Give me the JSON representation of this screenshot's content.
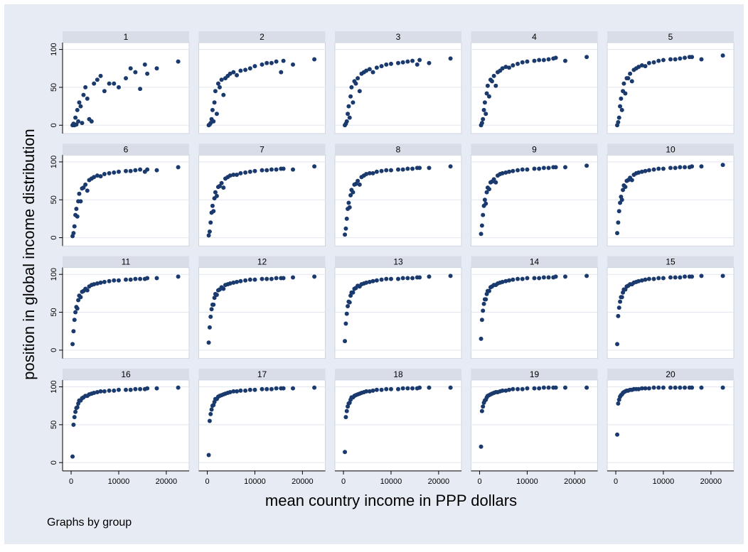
{
  "chart_data": {
    "type": "scatter",
    "x_label": "mean country income in PPP dollars",
    "y_label": "position in global income distribution",
    "note": "Graphs by group",
    "color": "#1a3a6e",
    "grid": true,
    "xlim": [
      -1800,
      24800
    ],
    "ylim": [
      -11,
      109
    ],
    "xticks": [
      0,
      10000,
      20000
    ],
    "yticks": [
      0,
      50,
      100
    ],
    "x": [
      300,
      500,
      700,
      900,
      1100,
      1300,
      1500,
      1700,
      2000,
      2300,
      2600,
      3000,
      3400,
      3800,
      4300,
      4800,
      5500,
      6200,
      7000,
      8000,
      9000,
      10000,
      11500,
      12500,
      13500,
      14500,
      15500,
      16000,
      18000,
      22500
    ],
    "series": [
      {
        "name": "1",
        "values": [
          0,
          2,
          0,
          10,
          1,
          20,
          5,
          30,
          25,
          3,
          40,
          50,
          35,
          8,
          5,
          55,
          60,
          65,
          45,
          55,
          55,
          50,
          62,
          75,
          70,
          48,
          80,
          68,
          75,
          84
        ]
      },
      {
        "name": "2",
        "values": [
          0,
          1,
          3,
          8,
          20,
          5,
          30,
          45,
          15,
          55,
          50,
          60,
          40,
          62,
          65,
          68,
          70,
          66,
          72,
          73,
          75,
          78,
          80,
          82,
          82,
          84,
          70,
          85,
          80,
          87
        ]
      },
      {
        "name": "3",
        "values": [
          0,
          2,
          5,
          15,
          25,
          10,
          38,
          50,
          30,
          58,
          55,
          62,
          45,
          68,
          70,
          72,
          74,
          70,
          76,
          78,
          80,
          81,
          82,
          83,
          84,
          85,
          80,
          86,
          82,
          88
        ]
      },
      {
        "name": "4",
        "values": [
          0,
          3,
          8,
          20,
          30,
          15,
          42,
          52,
          38,
          60,
          58,
          65,
          52,
          70,
          72,
          75,
          77,
          76,
          79,
          81,
          83,
          84,
          85,
          86,
          86,
          87,
          88,
          89,
          85,
          90
        ]
      },
      {
        "name": "5",
        "values": [
          0,
          4,
          10,
          25,
          35,
          20,
          45,
          55,
          42,
          62,
          62,
          68,
          58,
          73,
          75,
          77,
          79,
          78,
          82,
          83,
          85,
          86,
          87,
          87,
          88,
          89,
          90,
          90,
          87,
          92
        ]
      },
      {
        "name": "6",
        "values": [
          2,
          6,
          15,
          30,
          38,
          28,
          48,
          58,
          48,
          65,
          66,
          70,
          62,
          76,
          78,
          80,
          82,
          81,
          84,
          85,
          86,
          87,
          88,
          88,
          89,
          90,
          87,
          90,
          89,
          93
        ]
      },
      {
        "name": "7",
        "values": [
          3,
          8,
          20,
          33,
          42,
          35,
          52,
          60,
          55,
          67,
          68,
          72,
          66,
          78,
          80,
          82,
          83,
          83,
          85,
          86,
          87,
          88,
          89,
          89,
          90,
          90,
          91,
          91,
          90,
          94
        ]
      },
      {
        "name": "8",
        "values": [
          4,
          12,
          25,
          38,
          46,
          40,
          56,
          63,
          60,
          70,
          71,
          75,
          70,
          80,
          82,
          84,
          85,
          85,
          87,
          88,
          89,
          89,
          90,
          90,
          91,
          91,
          92,
          92,
          92,
          94
        ]
      },
      {
        "name": "9",
        "values": [
          5,
          16,
          30,
          42,
          50,
          45,
          60,
          66,
          64,
          73,
          74,
          77,
          73,
          82,
          84,
          85,
          86,
          87,
          88,
          89,
          90,
          90,
          91,
          91,
          92,
          92,
          93,
          93,
          93,
          95
        ]
      },
      {
        "name": "10",
        "values": [
          6,
          20,
          35,
          46,
          54,
          50,
          63,
          69,
          67,
          75,
          76,
          79,
          76,
          83,
          85,
          86,
          87,
          88,
          89,
          90,
          91,
          91,
          92,
          92,
          93,
          93,
          93,
          94,
          94,
          96
        ]
      },
      {
        "name": "11",
        "values": [
          8,
          25,
          40,
          50,
          57,
          55,
          66,
          72,
          70,
          77,
          78,
          81,
          79,
          84,
          86,
          87,
          88,
          89,
          90,
          91,
          92,
          92,
          93,
          93,
          94,
          94,
          94,
          95,
          95,
          97
        ]
      },
      {
        "name": "12",
        "values": [
          10,
          30,
          44,
          54,
          60,
          60,
          69,
          74,
          73,
          79,
          80,
          83,
          81,
          86,
          87,
          88,
          89,
          90,
          91,
          92,
          93,
          93,
          94,
          94,
          94,
          95,
          95,
          95,
          96,
          97
        ]
      },
      {
        "name": "13",
        "values": [
          12,
          35,
          48,
          58,
          64,
          63,
          72,
          76,
          76,
          81,
          82,
          85,
          84,
          87,
          88,
          89,
          90,
          91,
          92,
          93,
          94,
          94,
          94,
          95,
          95,
          95,
          96,
          96,
          97,
          98
        ]
      },
      {
        "name": "14",
        "values": [
          15,
          40,
          52,
          61,
          67,
          67,
          74,
          78,
          78,
          83,
          84,
          86,
          86,
          88,
          89,
          90,
          91,
          92,
          93,
          94,
          94,
          95,
          95,
          95,
          96,
          96,
          96,
          97,
          97,
          98
        ]
      },
      {
        "name": "15",
        "values": [
          8,
          45,
          56,
          64,
          70,
          70,
          76,
          80,
          80,
          84,
          85,
          87,
          87,
          89,
          90,
          91,
          92,
          93,
          94,
          94,
          95,
          95,
          96,
          96,
          96,
          97,
          97,
          97,
          98,
          98
        ]
      },
      {
        "name": "16",
        "values": [
          8,
          50,
          60,
          67,
          72,
          73,
          78,
          82,
          82,
          85,
          86,
          88,
          88,
          90,
          91,
          92,
          93,
          94,
          94,
          95,
          95,
          96,
          96,
          96,
          97,
          97,
          97,
          98,
          98,
          99
        ]
      },
      {
        "name": "17",
        "values": [
          10,
          55,
          64,
          70,
          75,
          76,
          80,
          84,
          84,
          87,
          88,
          89,
          90,
          91,
          92,
          93,
          94,
          94,
          95,
          95,
          96,
          96,
          97,
          97,
          97,
          98,
          98,
          98,
          98,
          99
        ]
      },
      {
        "name": "18",
        "values": [
          14,
          60,
          68,
          74,
          78,
          79,
          83,
          86,
          86,
          88,
          89,
          90,
          91,
          92,
          93,
          94,
          94,
          95,
          96,
          96,
          97,
          97,
          97,
          98,
          98,
          98,
          98,
          99,
          99,
          99
        ]
      },
      {
        "name": "19",
        "values": [
          21,
          68,
          74,
          79,
          82,
          83,
          86,
          88,
          89,
          90,
          91,
          92,
          93,
          93,
          94,
          95,
          95,
          96,
          97,
          97,
          97,
          98,
          98,
          98,
          99,
          99,
          99,
          99,
          99,
          99
        ]
      },
      {
        "name": "20",
        "values": [
          37,
          78,
          83,
          87,
          89,
          90,
          92,
          93,
          94,
          95,
          95,
          96,
          96,
          97,
          97,
          97,
          98,
          98,
          98,
          99,
          99,
          99,
          99,
          99,
          99,
          99,
          99,
          99,
          99,
          99
        ]
      }
    ]
  }
}
